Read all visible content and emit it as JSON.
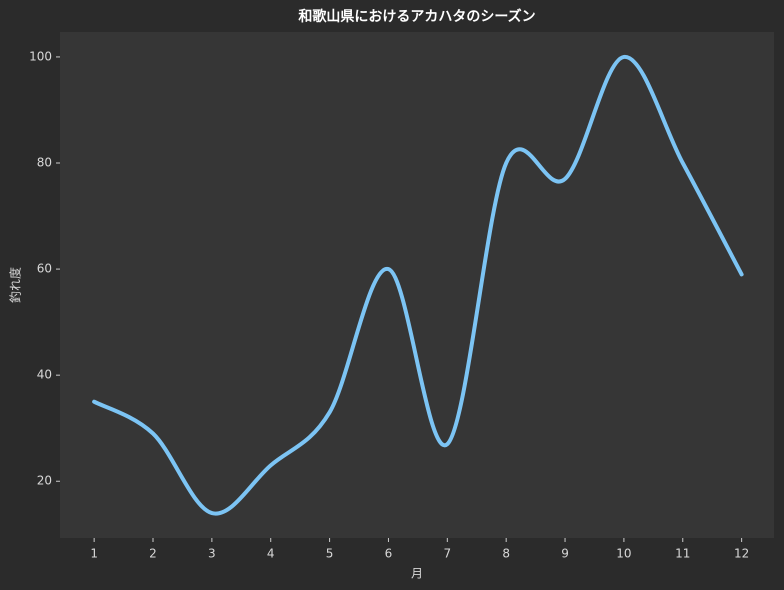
{
  "chart_data": {
    "type": "line",
    "title": "和歌山県におけるアカハタのシーズン",
    "x_label": "月",
    "y_label": "釣れ度",
    "x": [
      1,
      2,
      3,
      4,
      5,
      6,
      7,
      8,
      9,
      10,
      11,
      12
    ],
    "series": [
      {
        "name": "釣れ度",
        "color": "#7cc4f4",
        "values": [
          35,
          29,
          14,
          23,
          33,
          60,
          27,
          80,
          77,
          100,
          80,
          59
        ]
      }
    ],
    "xlim": [
      0.42,
      12.55
    ],
    "ylim": [
      9.3,
      104.7
    ],
    "xticks": [
      1,
      2,
      3,
      4,
      5,
      6,
      7,
      8,
      9,
      10,
      11,
      12
    ],
    "yticks": [
      20,
      40,
      60,
      80,
      100
    ],
    "grid": false
  }
}
